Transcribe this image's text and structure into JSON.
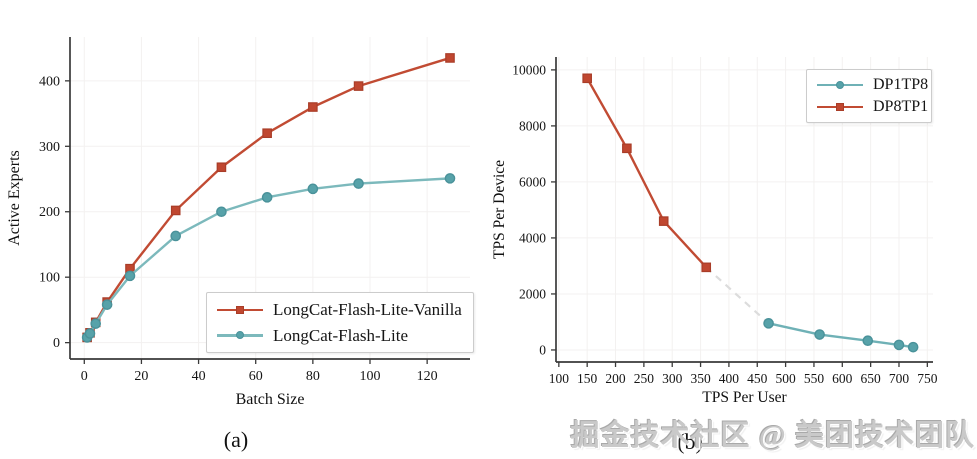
{
  "watermark": "掘金技术社区 @ 美团技术团队",
  "colors": {
    "red_series": "#c14b33",
    "red_marker_fill": "#c04730",
    "red_marker_stroke": "#a93d28",
    "teal_series": "#7cb9bc",
    "teal_marker_fill": "#57a2a9",
    "teal_marker_stroke": "#4a929a",
    "connector_gray": "#dcdcdc",
    "axis": "#3a3a3a",
    "grid": "#f3f1f0"
  },
  "chart_data": [
    {
      "type": "line",
      "title": "",
      "caption": "(a)",
      "xlabel": "Batch Size",
      "ylabel": "Active Experts",
      "xticks": [
        0,
        20,
        40,
        60,
        80,
        100,
        120
      ],
      "yticks": [
        0,
        100,
        200,
        300,
        400
      ],
      "xlim": [
        -5,
        135
      ],
      "ylim": [
        -25,
        467
      ],
      "grid": true,
      "legend_position": "lower right",
      "x": [
        1,
        2,
        4,
        8,
        16,
        32,
        48,
        64,
        80,
        96,
        128
      ],
      "series": [
        {
          "name": "LongCat-Flash-Lite-Vanilla",
          "marker": "square",
          "color": "#c14b33",
          "marker_fill": "#c04730",
          "marker_stroke": "#a93d28",
          "values": [
            8,
            15,
            31,
            62,
            113,
            202,
            268,
            320,
            360,
            392,
            435
          ]
        },
        {
          "name": "LongCat-Flash-Lite",
          "marker": "circle",
          "color": "#7cb9bc",
          "marker_fill": "#57a2a9",
          "marker_stroke": "#4a929a",
          "values": [
            8,
            14,
            29,
            58,
            102,
            163,
            200,
            222,
            235,
            243,
            251
          ]
        }
      ]
    },
    {
      "type": "line",
      "title": "",
      "caption": "(b)",
      "xlabel": "TPS Per User",
      "ylabel": "TPS Per Device",
      "xticks": [
        100,
        150,
        200,
        250,
        300,
        350,
        400,
        450,
        500,
        550,
        600,
        650,
        700,
        750
      ],
      "yticks": [
        0,
        2000,
        4000,
        6000,
        8000,
        10000
      ],
      "xlim": [
        95,
        760
      ],
      "ylim": [
        -430,
        10460
      ],
      "grid": true,
      "legend_position": "upper right",
      "series": [
        {
          "name": "DP1TP8",
          "marker": "circle",
          "color": "#6fb1b6",
          "marker_fill": "#57a2a9",
          "marker_stroke": "#4a929a",
          "x": [
            470,
            560,
            645,
            700,
            725
          ],
          "y": [
            950,
            550,
            330,
            180,
            100
          ]
        },
        {
          "name": "DP8TP1",
          "marker": "square",
          "color": "#c14b33",
          "marker_fill": "#c04730",
          "marker_stroke": "#a93d28",
          "x": [
            150,
            220,
            285,
            360
          ],
          "y": [
            9700,
            7200,
            4600,
            2950
          ]
        }
      ],
      "connector": {
        "style": "dashed",
        "color": "#dcdcdc",
        "x": [
          360,
          470
        ],
        "y": [
          2950,
          950
        ]
      }
    }
  ]
}
